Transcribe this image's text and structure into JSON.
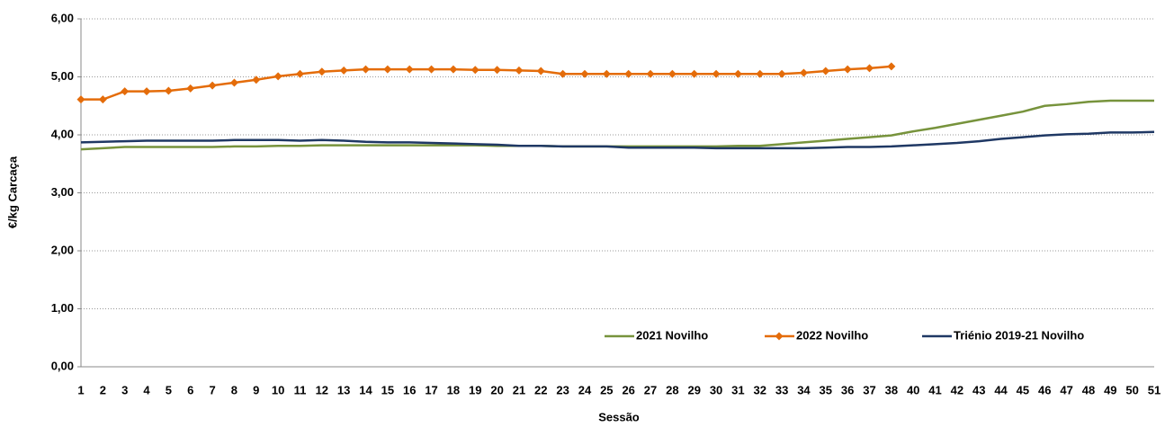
{
  "chart_data": {
    "type": "line",
    "y_label": "€/kg Carcaça",
    "x_label": "Sessão",
    "categories": [
      "1",
      "2",
      "3",
      "4",
      "5",
      "6",
      "7",
      "8",
      "9",
      "10",
      "11",
      "12",
      "13",
      "14",
      "15",
      "16",
      "17",
      "18",
      "19",
      "20",
      "21",
      "22",
      "23",
      "24",
      "25",
      "26",
      "27",
      "28",
      "29",
      "30",
      "31",
      "32",
      "33",
      "34",
      "35",
      "36",
      "37",
      "38",
      "40",
      "41",
      "42",
      "43",
      "44",
      "45",
      "46",
      "47",
      "48",
      "49",
      "50",
      "51"
    ],
    "series": [
      {
        "name": "2021 Novilho",
        "color": "#77933c",
        "marker": false,
        "values": [
          3.75,
          3.77,
          3.79,
          3.79,
          3.79,
          3.79,
          3.79,
          3.8,
          3.8,
          3.81,
          3.81,
          3.82,
          3.82,
          3.82,
          3.82,
          3.82,
          3.82,
          3.82,
          3.82,
          3.81,
          3.81,
          3.81,
          3.8,
          3.8,
          3.8,
          3.8,
          3.8,
          3.8,
          3.8,
          3.8,
          3.81,
          3.81,
          3.84,
          3.87,
          3.9,
          3.93,
          3.96,
          3.99,
          4.06,
          4.12,
          4.19,
          4.26,
          4.33,
          4.4,
          4.5,
          4.53,
          4.57,
          4.59,
          4.59,
          4.59
        ]
      },
      {
        "name": "2022 Novilho",
        "color": "#e46c0a",
        "marker": true,
        "values": [
          4.61,
          4.61,
          4.75,
          4.75,
          4.76,
          4.8,
          4.85,
          4.9,
          4.95,
          5.01,
          5.05,
          5.09,
          5.11,
          5.13,
          5.13,
          5.13,
          5.13,
          5.13,
          5.12,
          5.12,
          5.11,
          5.1,
          5.05,
          5.05,
          5.05,
          5.05,
          5.05,
          5.05,
          5.05,
          5.05,
          5.05,
          5.05,
          5.05,
          5.07,
          5.1,
          5.13,
          5.15,
          5.18,
          null,
          null,
          null,
          null,
          null,
          null,
          null,
          null,
          null,
          null,
          null,
          null
        ]
      },
      {
        "name": "Triénio 2019-21 Novilho",
        "color": "#1f3864",
        "marker": false,
        "values": [
          3.87,
          3.88,
          3.89,
          3.9,
          3.9,
          3.9,
          3.9,
          3.91,
          3.91,
          3.91,
          3.9,
          3.91,
          3.9,
          3.88,
          3.87,
          3.87,
          3.86,
          3.85,
          3.84,
          3.83,
          3.81,
          3.81,
          3.8,
          3.8,
          3.8,
          3.78,
          3.78,
          3.78,
          3.78,
          3.77,
          3.77,
          3.77,
          3.77,
          3.77,
          3.78,
          3.79,
          3.79,
          3.8,
          3.82,
          3.84,
          3.86,
          3.89,
          3.93,
          3.96,
          3.99,
          4.01,
          4.02,
          4.04,
          4.04,
          4.05
        ]
      }
    ],
    "ylim": [
      0,
      6
    ],
    "yticks": [
      {
        "value": 0,
        "label": "0,00"
      },
      {
        "value": 1,
        "label": "1,00"
      },
      {
        "value": 2,
        "label": "2,00"
      },
      {
        "value": 3,
        "label": "3,00"
      },
      {
        "value": 4,
        "label": "4,00"
      },
      {
        "value": 5,
        "label": "5,00"
      },
      {
        "value": 6,
        "label": "6,00"
      }
    ],
    "grid": true,
    "legend": "bottom-right"
  }
}
